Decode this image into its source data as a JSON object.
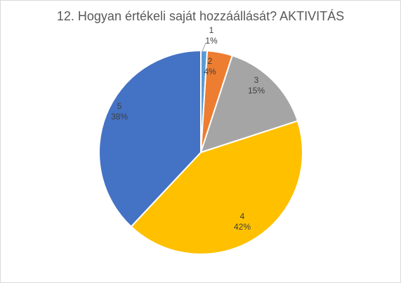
{
  "chart_data": {
    "type": "pie",
    "title": "12. Hogyan értékeli saját hozzáállását? AKTIVITÁS",
    "categories": [
      "1",
      "2",
      "3",
      "4",
      "5"
    ],
    "values": [
      1,
      4,
      15,
      42,
      38
    ],
    "value_labels": [
      "1%",
      "4%",
      "15%",
      "42%",
      "38%"
    ],
    "colors": [
      "#5b9bd5",
      "#ed7d31",
      "#a5a5a5",
      "#ffc000",
      "#4472c4"
    ],
    "legend": "none",
    "data_labels": "category and percentage"
  }
}
